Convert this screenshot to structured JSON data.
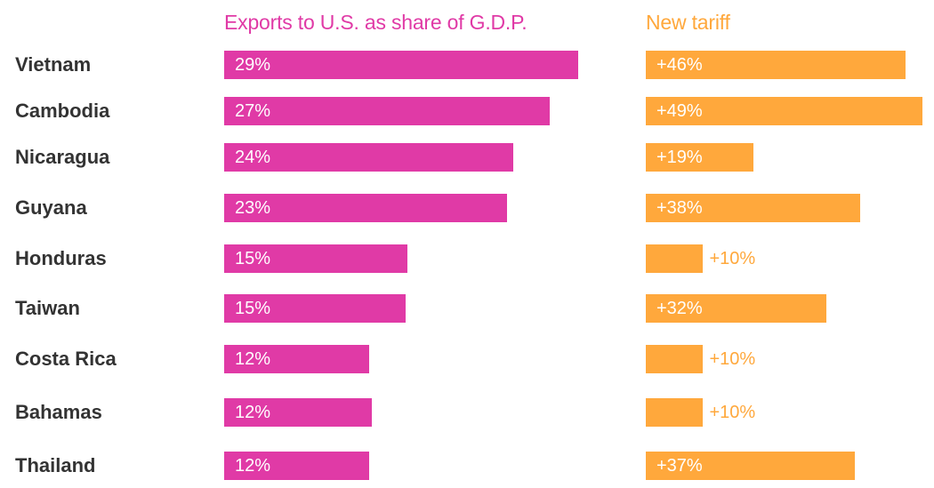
{
  "colors": {
    "exports": "#e03aa6",
    "tariff": "#ffa83c",
    "country_text": "#333333",
    "bar_text": "#ffffff"
  },
  "chart_data": {
    "type": "bar",
    "orientation": "horizontal",
    "categories": [
      "Vietnam",
      "Cambodia",
      "Nicaragua",
      "Guyana",
      "Honduras",
      "Taiwan",
      "Costa Rica",
      "Bahamas",
      "Thailand"
    ],
    "series": [
      {
        "name": "Exports to U.S. as share of G.D.P.",
        "key": "exports",
        "values": [
          29.0,
          26.7,
          23.7,
          23.2,
          15.0,
          14.9,
          11.9,
          12.1,
          11.9
        ],
        "labels": [
          "29%",
          "27%",
          "24%",
          "23%",
          "15%",
          "15%",
          "12%",
          "12%",
          "12%"
        ]
      },
      {
        "name": "New tariff",
        "key": "tariff",
        "values": [
          46,
          49,
          19,
          38,
          10,
          32,
          10,
          10,
          37
        ],
        "labels": [
          "+46%",
          "+49%",
          "+19%",
          "+38%",
          "+10%",
          "+32%",
          "+10%",
          "+10%",
          "+37%"
        ]
      }
    ],
    "title": "",
    "legend": "column-headers-top",
    "grid": false
  }
}
